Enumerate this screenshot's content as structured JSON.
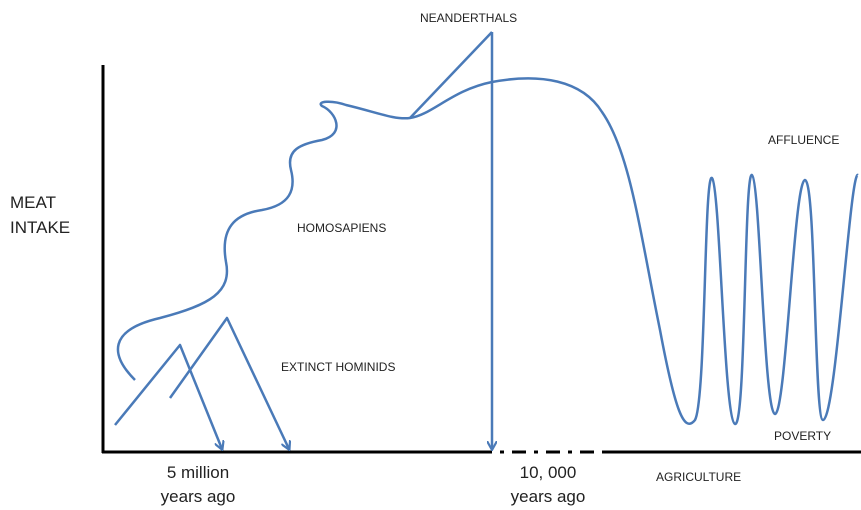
{
  "y_axis_label": [
    "MEAT",
    "INTAKE"
  ],
  "labels": {
    "neanderthals": "NEANDERTHALS",
    "homosapiens": "HOMOSAPIENS",
    "extinct_hominids": "EXTINCT HOMINIDS",
    "affluence": "AFFLUENCE",
    "poverty": "POVERTY",
    "agriculture": "AGRICULTURE"
  },
  "x_labels": [
    [
      "5 million",
      "years ago"
    ],
    [
      "10, 000",
      "years ago"
    ]
  ]
}
